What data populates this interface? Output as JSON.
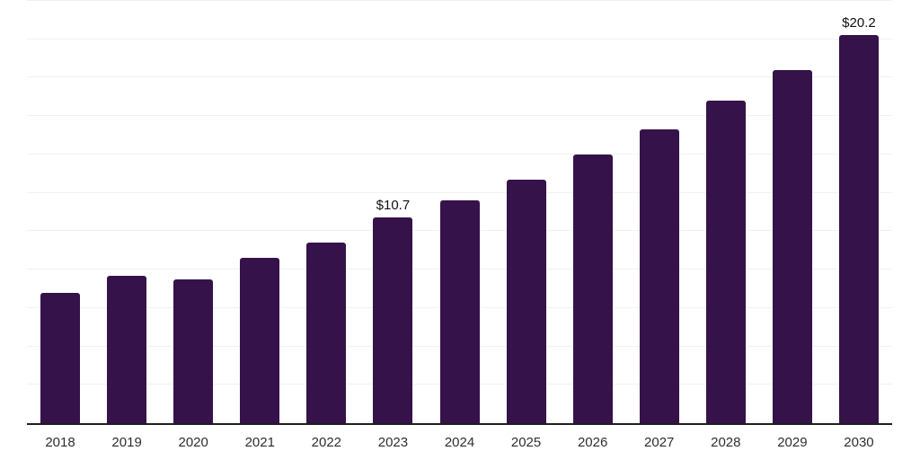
{
  "chart_data": {
    "type": "bar",
    "title": "",
    "xlabel": "",
    "ylabel": "",
    "categories": [
      "2018",
      "2019",
      "2020",
      "2021",
      "2022",
      "2023",
      "2024",
      "2025",
      "2026",
      "2027",
      "2028",
      "2029",
      "2030"
    ],
    "values": [
      6.8,
      7.7,
      7.5,
      8.6,
      9.4,
      10.7,
      11.6,
      12.7,
      14.0,
      15.3,
      16.8,
      18.4,
      20.2
    ],
    "point_labels": [
      "",
      "",
      "",
      "",
      "",
      "$10.7",
      "",
      "",
      "",
      "",
      "",
      "",
      "$20.2"
    ],
    "ylim": [
      0,
      22
    ],
    "gridline_step": 2,
    "grid": "horizontal",
    "legend": "none",
    "y_axis_ticks_visible": false,
    "colors": {
      "bar": "#35124A",
      "gridline": "#f1f1f3",
      "axis_line": "#1f1f1f",
      "tick_label": "#2e2e2e",
      "value_label": "#101010",
      "background": "#ffffff"
    }
  }
}
